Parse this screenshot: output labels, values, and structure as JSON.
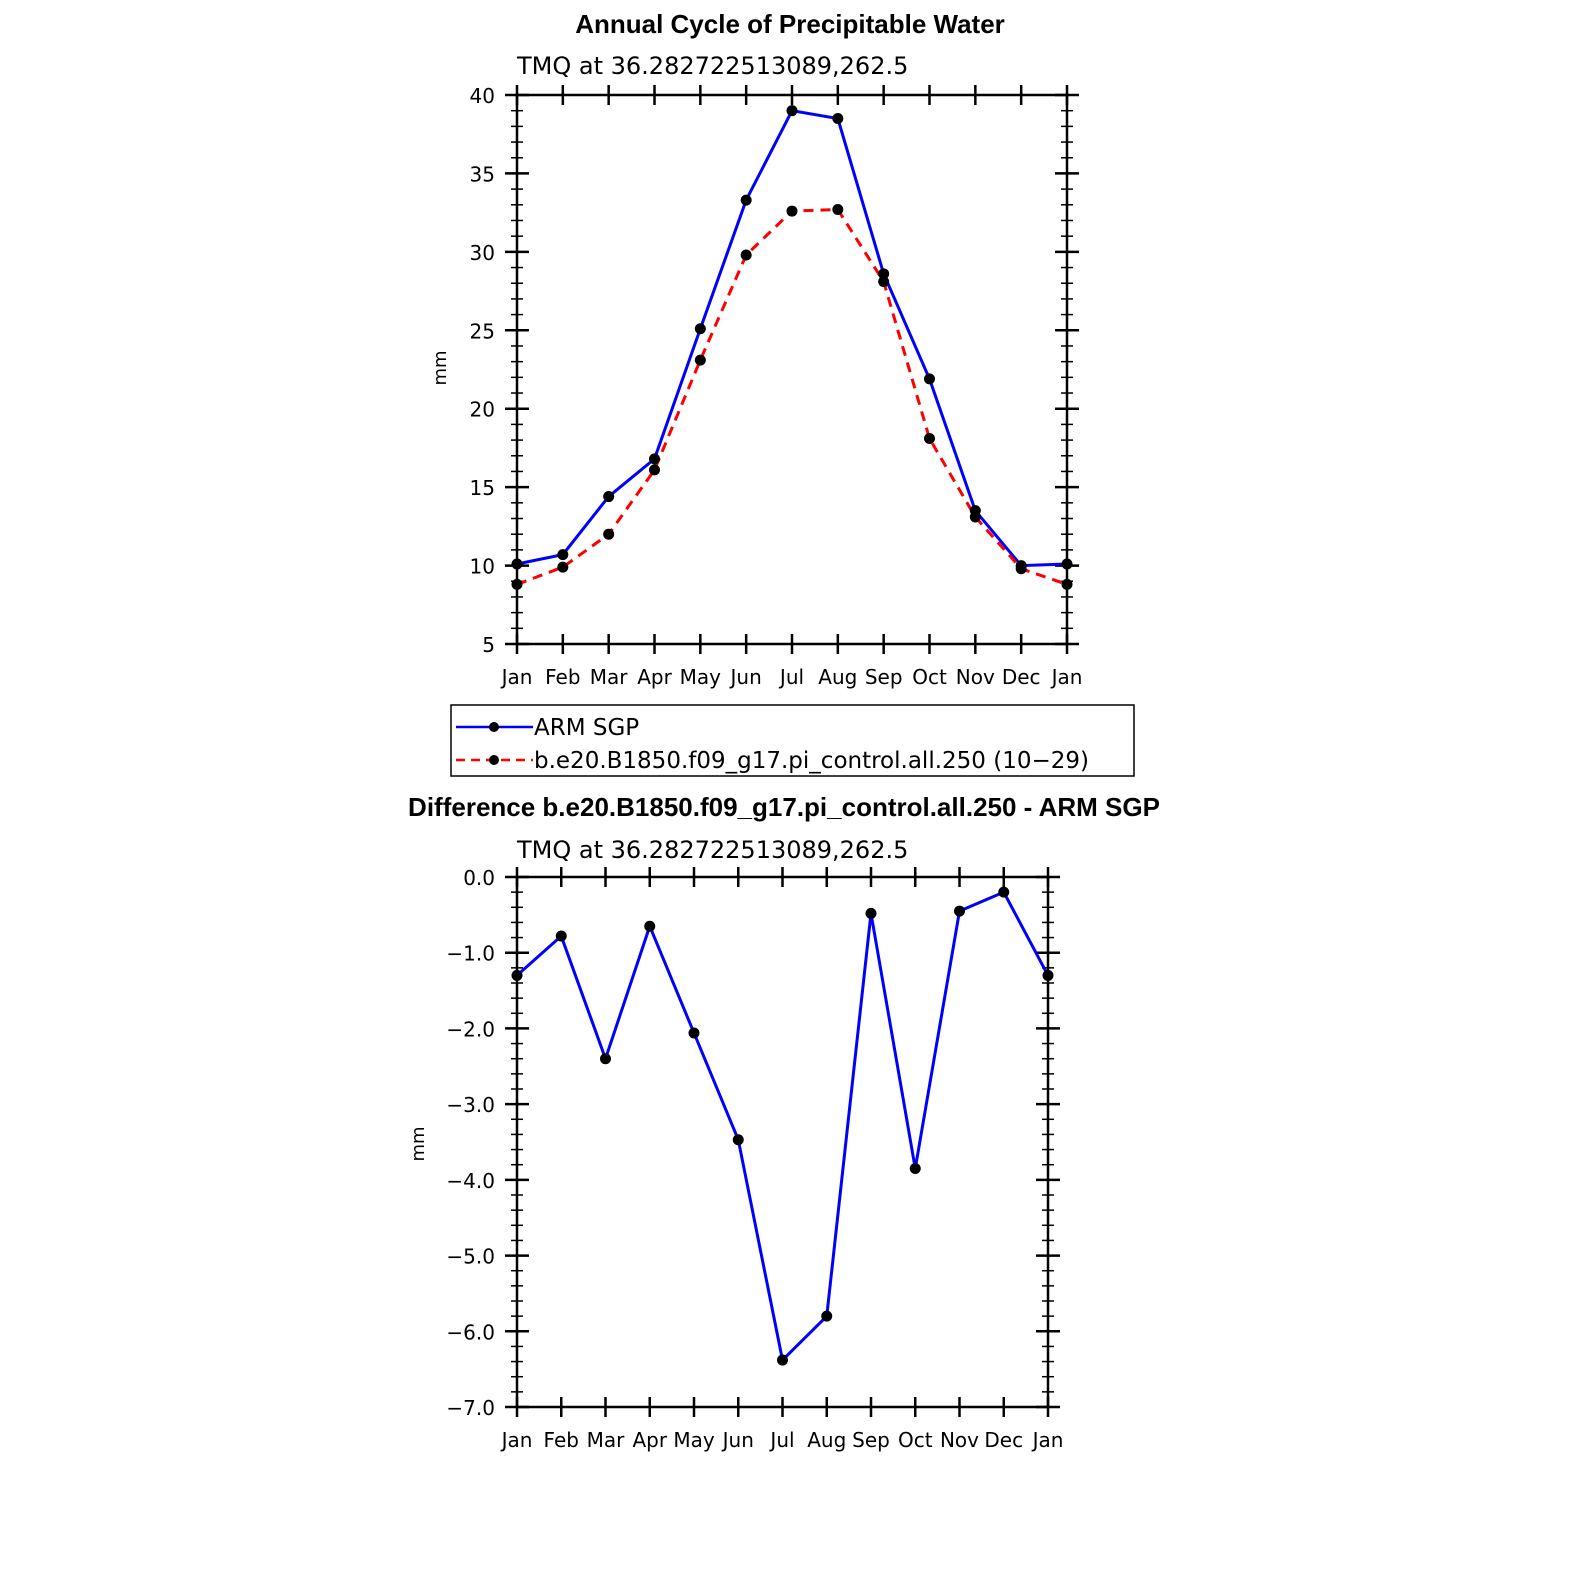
{
  "chart_data": [
    {
      "type": "line",
      "title": "Annual Cycle of Precipitable Water",
      "subtitle": "TMQ at 36.282722513089,262.5",
      "ylabel": "mm",
      "categories": [
        "Jan",
        "Feb",
        "Mar",
        "Apr",
        "May",
        "Jun",
        "Jul",
        "Aug",
        "Sep",
        "Oct",
        "Nov",
        "Dec",
        "Jan"
      ],
      "ylim": [
        5,
        40
      ],
      "yticks": [
        "5",
        "10",
        "15",
        "20",
        "25",
        "30",
        "35",
        "40"
      ],
      "series": [
        {
          "name": "ARM SGP",
          "color": "#0000ff",
          "dash": "solid",
          "values": [
            10.1,
            10.7,
            14.4,
            16.8,
            25.1,
            33.3,
            39.0,
            38.5,
            28.6,
            21.9,
            13.5,
            10.0,
            10.1
          ]
        },
        {
          "name": "b.e20.B1850.f09_g17.pi_control.all.250 (10−29)",
          "color": "#ff0000",
          "dash": "dashed",
          "values": [
            8.8,
            9.9,
            12.0,
            16.1,
            23.1,
            29.8,
            32.6,
            32.7,
            28.1,
            18.1,
            13.1,
            9.8,
            8.8
          ]
        }
      ],
      "legend_position": "below"
    },
    {
      "type": "line",
      "title": "Difference b.e20.B1850.f09_g17.pi_control.all.250 - ARM SGP",
      "subtitle": "TMQ at 36.282722513089,262.5",
      "ylabel": "mm",
      "categories": [
        "Jan",
        "Feb",
        "Mar",
        "Apr",
        "May",
        "Jun",
        "Jul",
        "Aug",
        "Sep",
        "Oct",
        "Nov",
        "Dec",
        "Jan"
      ],
      "ylim": [
        -7.0,
        0.0
      ],
      "yticks": [
        "0.0",
        "−1.0",
        "−2.0",
        "−3.0",
        "−4.0",
        "−5.0",
        "−6.0",
        "−7.0"
      ],
      "series": [
        {
          "color": "#0000ff",
          "dash": "solid",
          "values": [
            -1.3,
            -0.78,
            -2.4,
            -0.65,
            -2.06,
            -3.47,
            -6.38,
            -5.8,
            -0.48,
            -3.85,
            -0.45,
            -0.2,
            -1.3
          ]
        }
      ]
    }
  ]
}
